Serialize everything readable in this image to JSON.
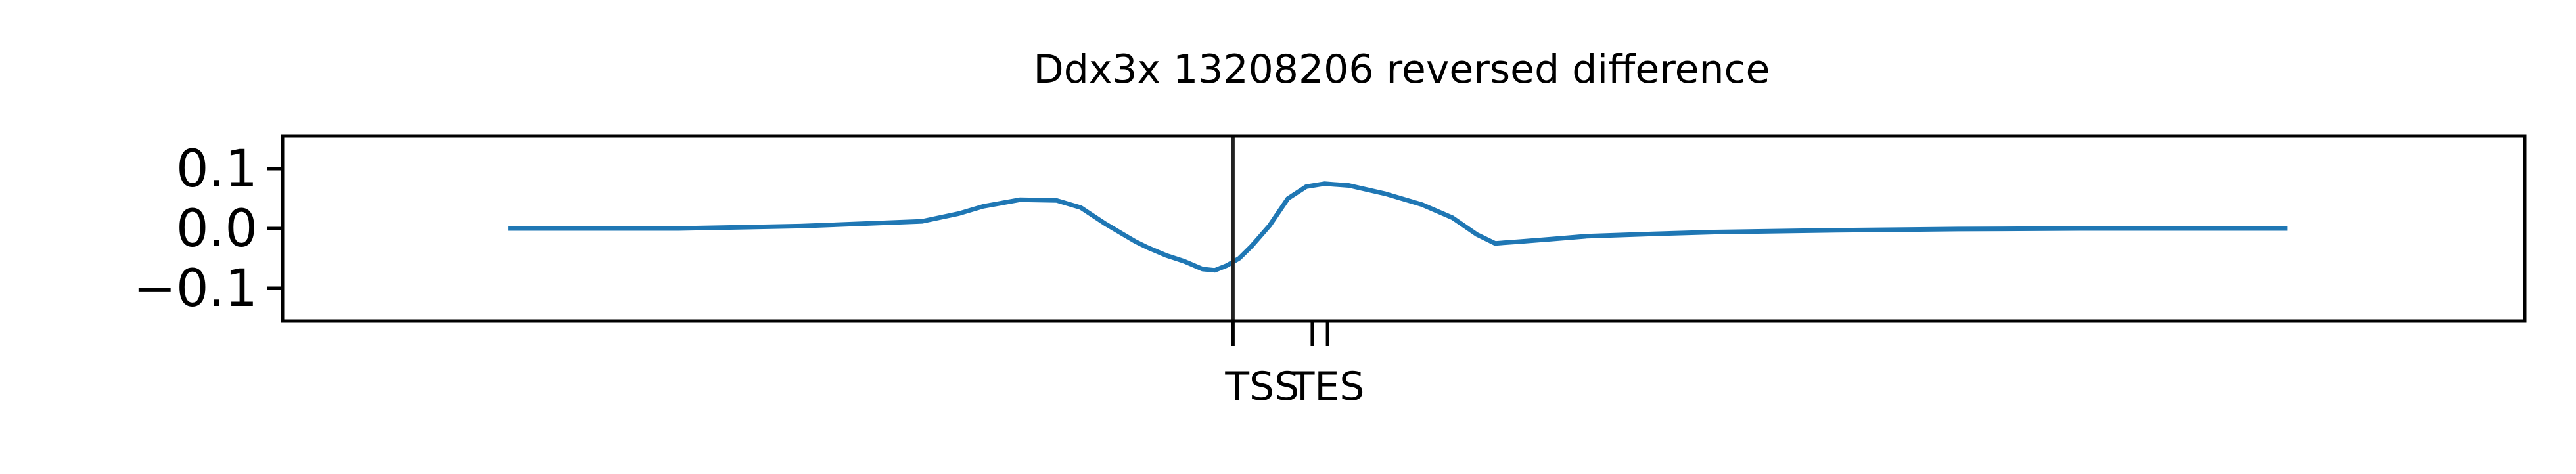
{
  "chart_data": {
    "type": "line",
    "title": "Ddx3x 13208206 reversed difference",
    "xlabel": "",
    "ylabel": "",
    "ylim": [
      -0.155,
      0.155
    ],
    "xlim": [
      -0.15,
      3.53
    ],
    "yticks": [
      {
        "value": 0.1,
        "label": "0.1"
      },
      {
        "value": 0.0,
        "label": "0.0"
      },
      {
        "value": -0.1,
        "label": "−0.1"
      }
    ],
    "xticks": [
      {
        "value": 1.41,
        "label": "TSS"
      },
      {
        "value": 1.54,
        "label": ""
      },
      {
        "value": 1.565,
        "label": "TES"
      }
    ],
    "vline_x": 1.41,
    "grid": false,
    "colors": {
      "series": "#1f77b4",
      "axes": "#000000"
    },
    "series": [
      {
        "x": [
          0.22,
          0.5,
          0.7,
          0.9,
          0.96,
          1.0,
          1.06,
          1.12,
          1.16,
          1.2,
          1.23,
          1.25,
          1.27,
          1.3,
          1.33,
          1.36,
          1.38,
          1.4,
          1.42,
          1.44,
          1.47,
          1.5,
          1.53,
          1.56,
          1.6,
          1.66,
          1.72,
          1.77,
          1.81,
          1.84,
          1.88,
          1.93,
          1.99,
          2.1,
          2.2,
          2.4,
          2.6,
          2.8,
          3.14
        ],
        "y": [
          0.0,
          0.0,
          0.004,
          0.012,
          0.025,
          0.037,
          0.048,
          0.047,
          0.035,
          0.008,
          -0.01,
          -0.022,
          -0.032,
          -0.045,
          -0.055,
          -0.068,
          -0.07,
          -0.062,
          -0.05,
          -0.03,
          0.005,
          0.05,
          0.07,
          0.075,
          0.072,
          0.058,
          0.04,
          0.018,
          -0.01,
          -0.025,
          -0.022,
          -0.018,
          -0.013,
          -0.009,
          -0.006,
          -0.003,
          -0.001,
          0.0,
          0.0
        ]
      }
    ]
  }
}
